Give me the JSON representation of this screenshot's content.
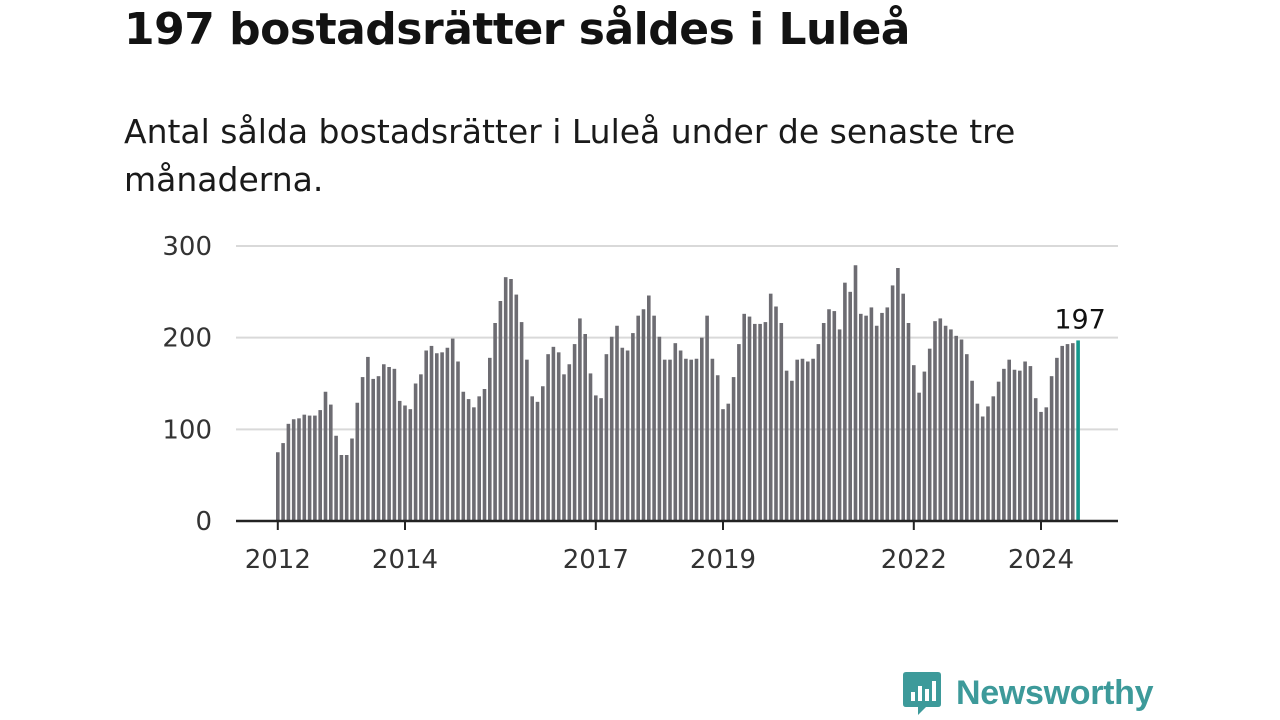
{
  "title": "197 bostadsrätter såldes i Luleå",
  "subtitle": "Antal sålda bostadsrätter i Luleå under de senaste tre månaderna.",
  "brand": {
    "name": "Newsworthy",
    "color": "#3d9a9a"
  },
  "colors": {
    "bar": "#6d6c72",
    "highlight": "#14978c",
    "grid": "#d9d9d9",
    "axis": "#222222"
  },
  "chart_data": {
    "type": "bar",
    "title": "",
    "xlabel": "",
    "ylabel": "",
    "ylim": [
      0,
      300
    ],
    "yticks": [
      0,
      100,
      200,
      300
    ],
    "start": {
      "year": 2012,
      "month": 1
    },
    "xticks": [
      {
        "label": "2012",
        "year": 2012
      },
      {
        "label": "2014",
        "year": 2014
      },
      {
        "label": "2017",
        "year": 2017
      },
      {
        "label": "2019",
        "year": 2019
      },
      {
        "label": "2022",
        "year": 2022
      },
      {
        "label": "2024",
        "year": 2024
      }
    ],
    "values": [
      75,
      85,
      106,
      111,
      112,
      116,
      115,
      115,
      121,
      141,
      127,
      93,
      72,
      72,
      90,
      129,
      157,
      179,
      155,
      158,
      171,
      168,
      166,
      131,
      126,
      122,
      150,
      160,
      186,
      191,
      183,
      184,
      189,
      199,
      174,
      141,
      133,
      124,
      136,
      144,
      178,
      216,
      240,
      266,
      264,
      247,
      217,
      176,
      136,
      130,
      147,
      182,
      190,
      184,
      160,
      171,
      193,
      221,
      204,
      161,
      137,
      134,
      182,
      201,
      213,
      189,
      186,
      205,
      224,
      231,
      246,
      224,
      201,
      176,
      176,
      194,
      186,
      177,
      176,
      177,
      200,
      224,
      177,
      159,
      122,
      128,
      157,
      193,
      226,
      223,
      215,
      215,
      217,
      248,
      234,
      216,
      164,
      153,
      176,
      177,
      174,
      177,
      193,
      216,
      231,
      229,
      209,
      260,
      250,
      279,
      226,
      224,
      233,
      213,
      227,
      233,
      257,
      276,
      248,
      216,
      170,
      140,
      163,
      188,
      218,
      221,
      213,
      209,
      202,
      198,
      182,
      153,
      128,
      114,
      125,
      136,
      152,
      166,
      176,
      165,
      164,
      174,
      169,
      134,
      119,
      124,
      158,
      178,
      191,
      193,
      194,
      197
    ],
    "highlight_label": "197"
  }
}
